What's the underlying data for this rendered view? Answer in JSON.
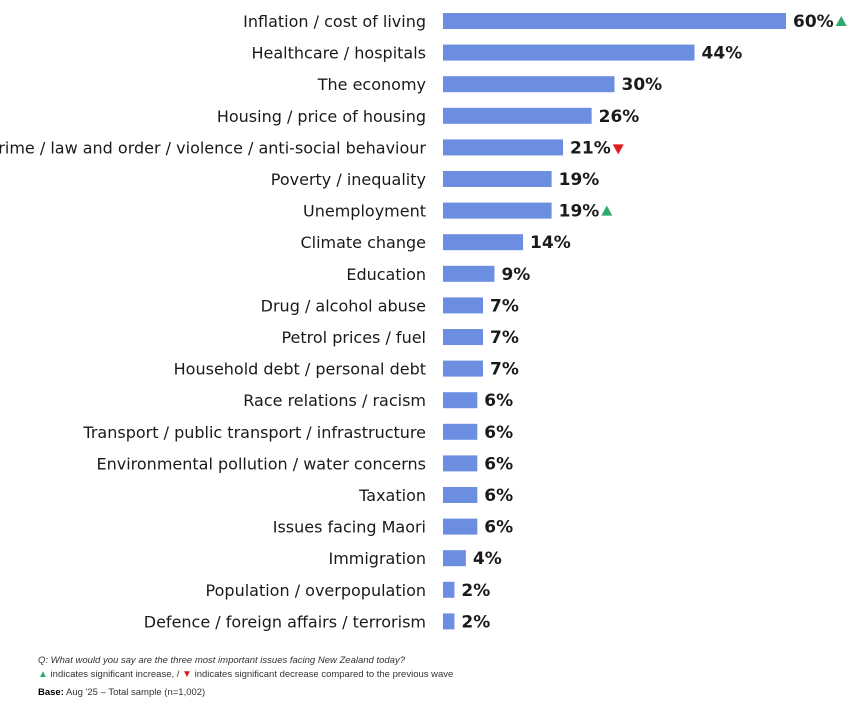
{
  "chart_data": {
    "type": "bar",
    "orientation": "horizontal",
    "categories": [
      "Inflation / cost of living",
      "Healthcare / hospitals",
      "The economy",
      "Housing / price of housing",
      "Crime / law and order / violence / anti-social behaviour",
      "Poverty / inequality",
      "Unemployment",
      "Climate change",
      "Education",
      "Drug / alcohol abuse",
      "Petrol prices / fuel",
      "Household debt / personal debt",
      "Race relations / racism",
      "Transport / public transport / infrastructure",
      "Environmental pollution / water concerns",
      "Taxation",
      "Issues facing Maori",
      "Immigration",
      "Population / overpopulation",
      "Defence / foreign affairs / terrorism"
    ],
    "values": [
      60,
      44,
      30,
      26,
      21,
      19,
      19,
      14,
      9,
      7,
      7,
      7,
      6,
      6,
      6,
      6,
      6,
      4,
      2,
      2
    ],
    "value_labels": [
      "60%",
      "44%",
      "30%",
      "26%",
      "21%",
      "19%",
      "19%",
      "14%",
      "9%",
      "7%",
      "7%",
      "7%",
      "6%",
      "6%",
      "6%",
      "6%",
      "6%",
      "4%",
      "2%",
      "2%"
    ],
    "significance": [
      "up",
      "",
      "",
      "",
      "down",
      "",
      "up",
      "",
      "",
      "",
      "",
      "",
      "",
      "",
      "",
      "",
      "",
      "",
      "",
      ""
    ],
    "xlim": [
      0,
      60
    ],
    "bar_color": "#6c8ee0",
    "increase_color": "#2eaa6e",
    "decrease_color": "#e01b1b",
    "grid": false,
    "title": "",
    "xlabel": "",
    "ylabel": ""
  },
  "footnotes": {
    "question": "Q: What would you say are the three most important issues facing New Zealand today?",
    "legend_up_icon": "triangle-up-icon",
    "legend_up_text": "indicates significant increase, /",
    "legend_down_icon": "triangle-down-icon",
    "legend_down_text": "indicates significant decrease compared to the previous wave",
    "base_label": "Base:",
    "base_text": "Aug '25 – Total sample (n=1,002)"
  }
}
